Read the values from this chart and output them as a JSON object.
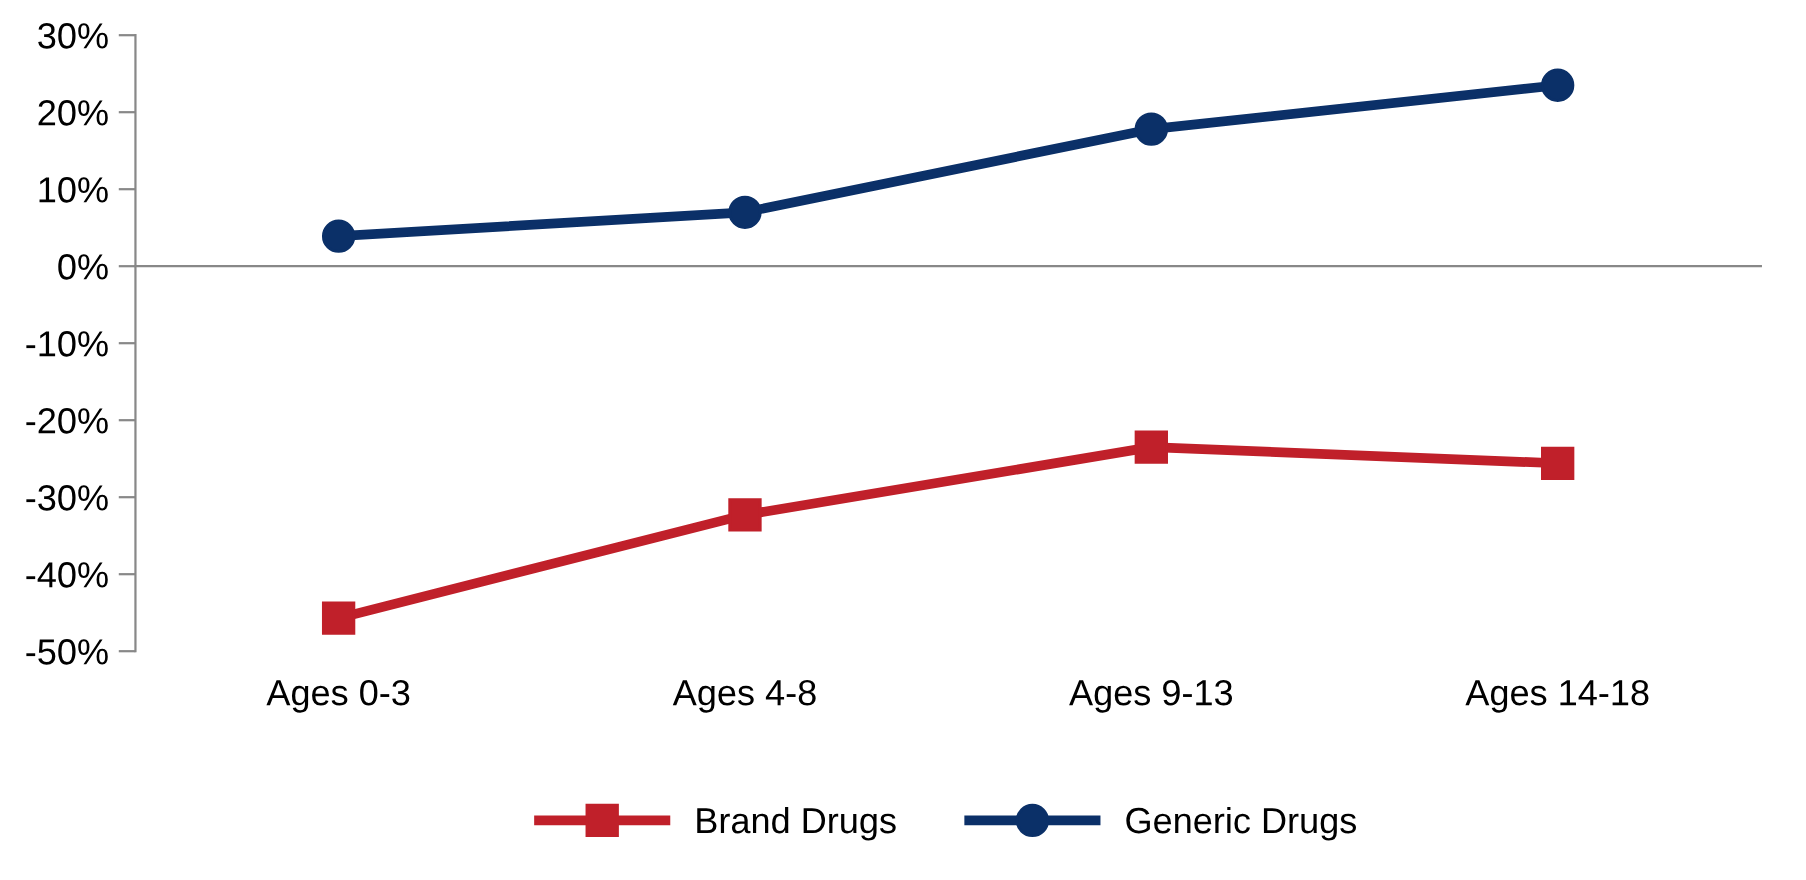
{
  "chart_data": {
    "type": "line",
    "categories": [
      "Ages 0-3",
      "Ages 4-8",
      "Ages 9-13",
      "Ages 14-18"
    ],
    "series": [
      {
        "name": "Brand Drugs",
        "color": "#c0202a",
        "marker": "square",
        "values": [
          -45.7,
          -32.3,
          -23.5,
          -25.6
        ]
      },
      {
        "name": "Generic Drugs",
        "color": "#0b3068",
        "marker": "circle",
        "values": [
          3.9,
          7.0,
          17.8,
          23.5
        ]
      }
    ],
    "ylim": [
      -50,
      30
    ],
    "yticks": [
      {
        "value": -50,
        "label": "-50%"
      },
      {
        "value": -40,
        "label": "-40%"
      },
      {
        "value": -30,
        "label": "-30%"
      },
      {
        "value": -20,
        "label": "-20%"
      },
      {
        "value": -10,
        "label": "-10%"
      },
      {
        "value": 0,
        "label": "0%"
      },
      {
        "value": 10,
        "label": "10%"
      },
      {
        "value": 20,
        "label": "20%"
      },
      {
        "value": 30,
        "label": "30%"
      }
    ],
    "legend": "bottom",
    "line_style": "solid"
  }
}
